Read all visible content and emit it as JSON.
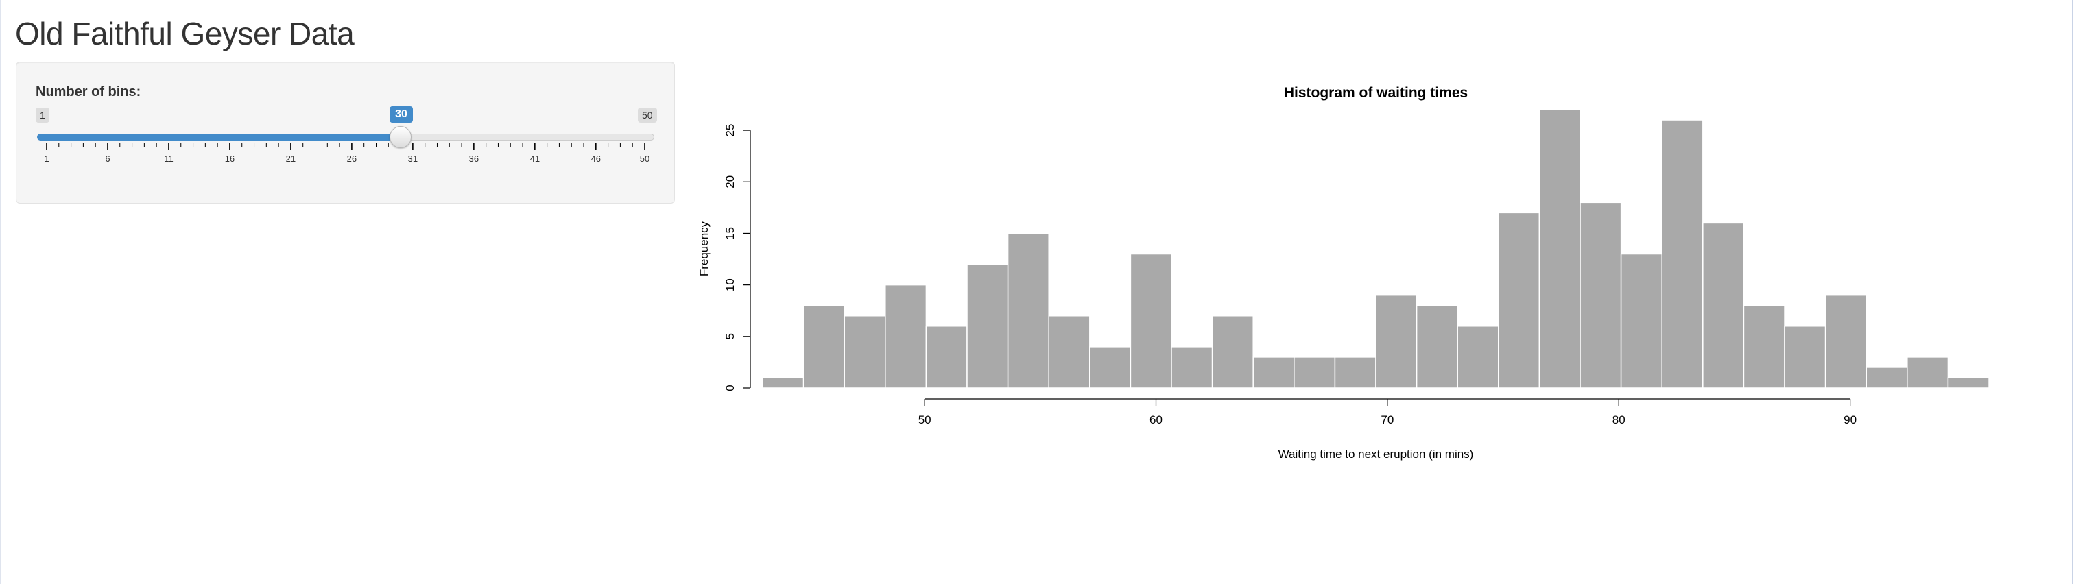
{
  "app": {
    "title": "Old Faithful Geyser Data"
  },
  "slider": {
    "label": "Number of bins:",
    "min": 1,
    "max": 50,
    "value": 30,
    "min_label": "1",
    "max_label": "50",
    "value_label": "30",
    "tick_labels": [
      "1",
      "6",
      "11",
      "16",
      "21",
      "26",
      "31",
      "36",
      "41",
      "46",
      "50"
    ],
    "fill_color": "#428bca"
  },
  "chart_data": {
    "type": "bar",
    "title": "Histogram of waiting times",
    "xlabel": "Waiting time to next eruption (in mins)",
    "ylabel": "Frequency",
    "bar_color": "#a9a9a9",
    "bin_start": 43,
    "bin_width": 1.7667,
    "values": [
      1,
      8,
      7,
      10,
      6,
      12,
      15,
      7,
      4,
      13,
      4,
      7,
      3,
      3,
      3,
      9,
      8,
      6,
      17,
      27,
      18,
      13,
      26,
      16,
      8,
      6,
      9,
      2,
      3,
      1
    ],
    "xlim": [
      43,
      96
    ],
    "ylim": [
      0,
      27
    ],
    "x_ticks": [
      50,
      60,
      70,
      80,
      90
    ],
    "y_ticks": [
      0,
      5,
      10,
      15,
      20,
      25
    ],
    "grid": false
  }
}
